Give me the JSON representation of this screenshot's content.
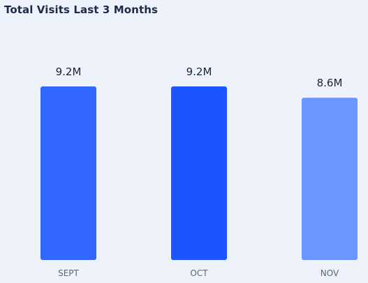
{
  "chart_data": {
    "type": "bar",
    "title": "Total Visits Last 3 Months",
    "categories": [
      "SEPT",
      "OCT",
      "NOV"
    ],
    "values": [
      9.2,
      9.2,
      8.6
    ],
    "value_labels": [
      "9.2M",
      "9.2M",
      "8.6M"
    ],
    "units": "M",
    "ylim": [
      0,
      9.2
    ],
    "grid": false,
    "legend": "none",
    "colors": [
      "#3366ff",
      "#1a55ff",
      "#6b95ff"
    ]
  }
}
